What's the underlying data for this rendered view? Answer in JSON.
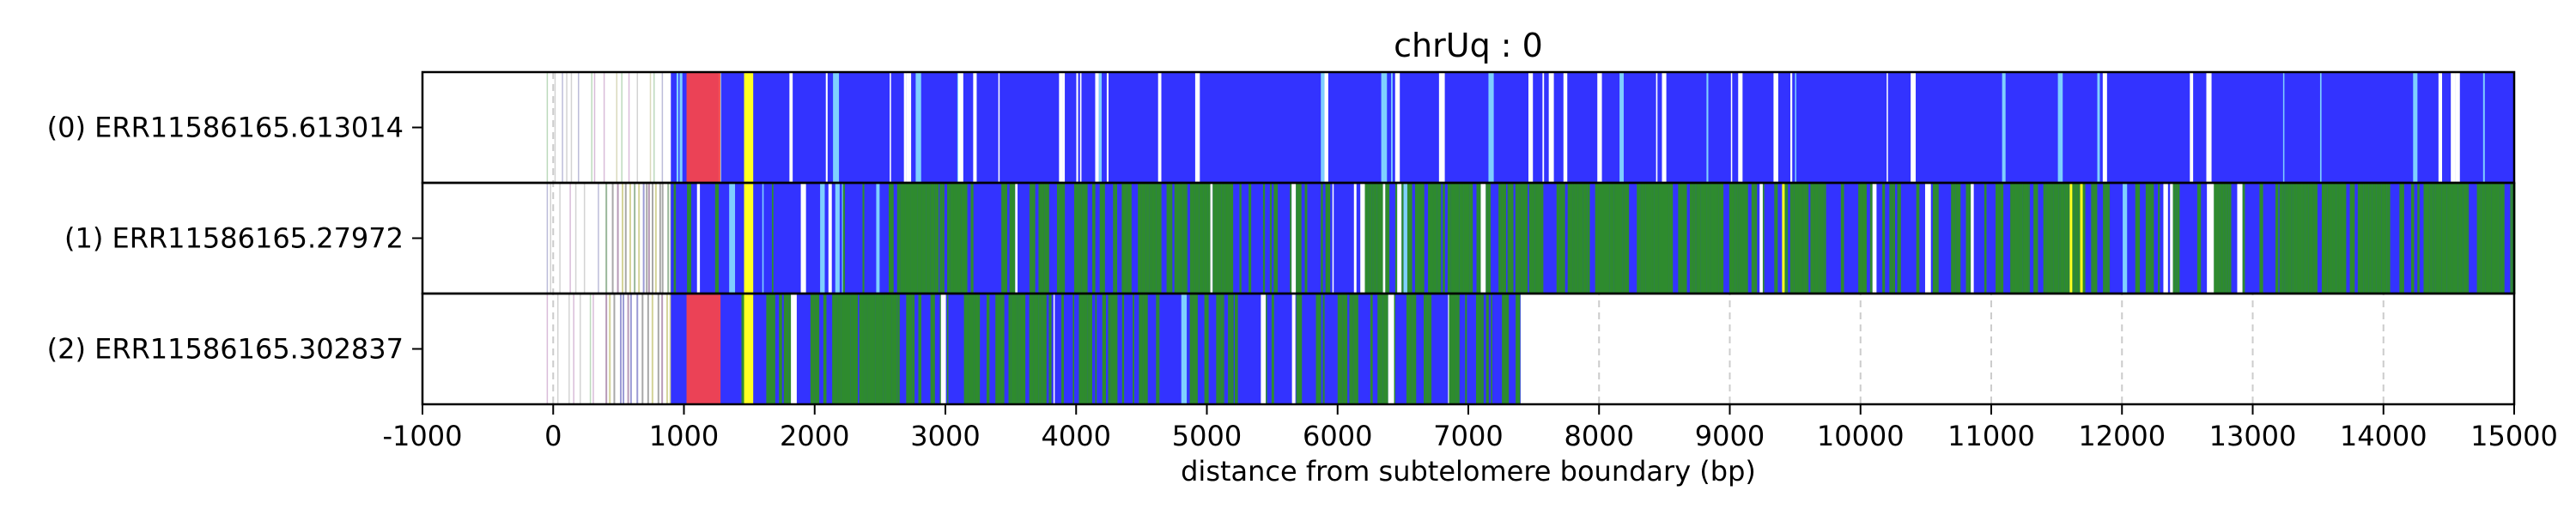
{
  "chart_data": {
    "type": "heatmap",
    "title": "chrUq : 0",
    "xlabel": "distance from subtelomere boundary (bp)",
    "ylabel": "",
    "xlim": [
      -1000,
      15000
    ],
    "xticks": [
      -1000,
      0,
      1000,
      2000,
      3000,
      4000,
      5000,
      6000,
      7000,
      8000,
      9000,
      10000,
      11000,
      12000,
      13000,
      14000,
      15000
    ],
    "grid": "vertical dashed",
    "legend": "none",
    "colors": {
      "blue": "#3333ff",
      "green": "#2e8b2e",
      "red": "#ff4444",
      "yellow": "#ffff22",
      "frame": "#000000",
      "grid": "#cccccc"
    },
    "series": [
      {
        "name": "(0) ERR11586165.613014",
        "start": 900,
        "end": 15000,
        "composition": "mostly blue with red block ~1000-1300 and yellow stripe ~1500"
      },
      {
        "name": "(1) ERR11586165.27972",
        "start": 400,
        "end": 15000,
        "composition": "blue and green mixed, green dominant 2600-3200, 4500-5200, 6300-9100, 13200-14000"
      },
      {
        "name": "(2) ERR11586165.302837",
        "start": 400,
        "end": 7400,
        "composition": "blue and green mixed, red ~1100-1300, yellow ~1500"
      }
    ]
  }
}
